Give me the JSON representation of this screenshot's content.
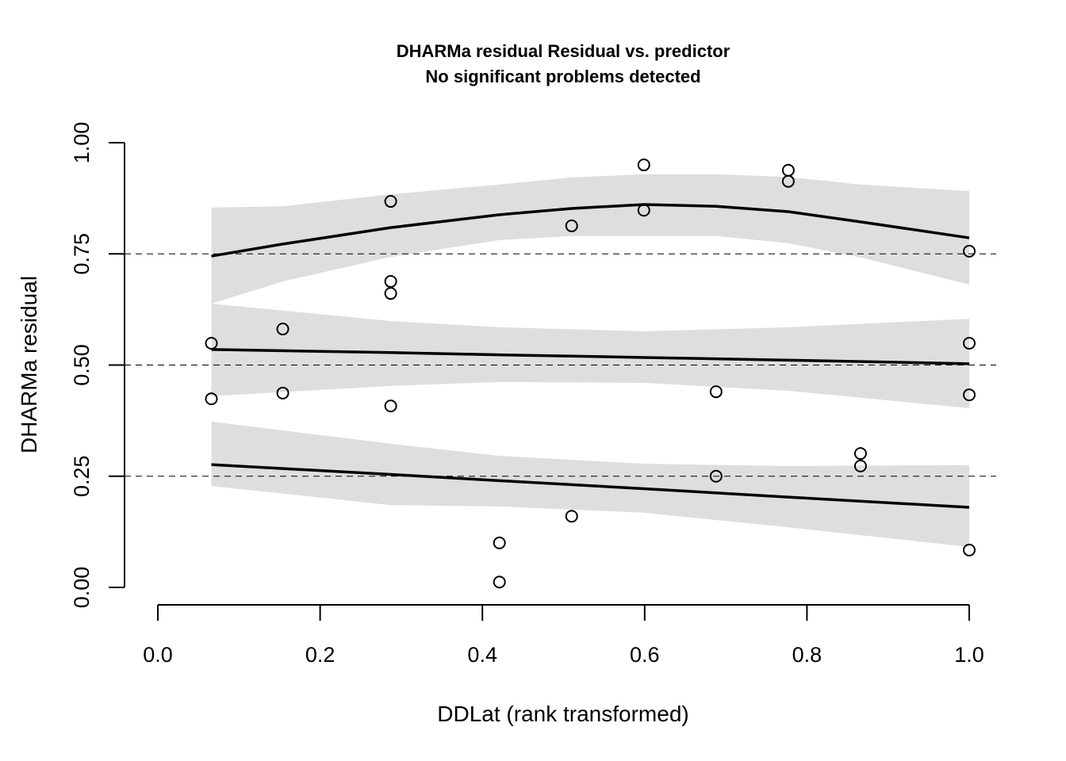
{
  "chart_data": {
    "type": "scatter",
    "title": "DHARMa residual Residual vs. predictor",
    "subtitle": "No significant problems detected",
    "xlabel": "DDLat (rank transformed)",
    "ylabel": "DHARMa residual",
    "xlim": [
      0,
      1
    ],
    "ylim": [
      0,
      1
    ],
    "xticks": [
      "0.0",
      "0.2",
      "0.4",
      "0.6",
      "0.8",
      "1.0"
    ],
    "xtick_values": [
      0,
      0.2,
      0.4,
      0.6,
      0.8,
      1.0
    ],
    "yticks": [
      "0.00",
      "0.25",
      "0.50",
      "0.75",
      "1.00"
    ],
    "ytick_values": [
      0,
      0.25,
      0.5,
      0.75,
      1.0
    ],
    "reference_lines": [
      0.25,
      0.5,
      0.75
    ],
    "points": [
      [
        0.066,
        0.549
      ],
      [
        0.066,
        0.424
      ],
      [
        0.154,
        0.581
      ],
      [
        0.154,
        0.437
      ],
      [
        0.287,
        0.868
      ],
      [
        0.287,
        0.688
      ],
      [
        0.287,
        0.661
      ],
      [
        0.287,
        0.408
      ],
      [
        0.421,
        0.1
      ],
      [
        0.421,
        0.012
      ],
      [
        0.51,
        0.813
      ],
      [
        0.51,
        0.16
      ],
      [
        0.599,
        0.95
      ],
      [
        0.599,
        0.848
      ],
      [
        0.688,
        0.44
      ],
      [
        0.688,
        0.25
      ],
      [
        0.777,
        0.938
      ],
      [
        0.777,
        0.913
      ],
      [
        0.866,
        0.301
      ],
      [
        0.866,
        0.273
      ],
      [
        1.0,
        0.756
      ],
      [
        1.0,
        0.549
      ],
      [
        1.0,
        0.433
      ],
      [
        1.0,
        0.084
      ]
    ],
    "quantile_fits": [
      {
        "name": "q0.75",
        "x": [
          0.066,
          0.154,
          0.287,
          0.421,
          0.51,
          0.599,
          0.688,
          0.777,
          0.866,
          1.0
        ],
        "y": [
          0.745,
          0.772,
          0.809,
          0.838,
          0.852,
          0.861,
          0.857,
          0.845,
          0.822,
          0.786
        ],
        "upper": [
          0.854,
          0.857,
          0.884,
          0.906,
          0.922,
          0.929,
          0.929,
          0.923,
          0.906,
          0.891
        ],
        "lower": [
          0.638,
          0.688,
          0.743,
          0.781,
          0.79,
          0.79,
          0.79,
          0.774,
          0.742,
          0.681
        ]
      },
      {
        "name": "q0.5",
        "x": [
          0.066,
          0.287,
          0.421,
          0.599,
          0.777,
          1.0
        ],
        "y": [
          0.535,
          0.528,
          0.523,
          0.517,
          0.511,
          0.503
        ],
        "upper": [
          0.638,
          0.599,
          0.585,
          0.576,
          0.585,
          0.604
        ],
        "lower": [
          0.43,
          0.453,
          0.462,
          0.46,
          0.442,
          0.403
        ]
      },
      {
        "name": "q0.25",
        "x": [
          0.066,
          0.287,
          0.421,
          0.599,
          0.777,
          1.0
        ],
        "y": [
          0.276,
          0.254,
          0.24,
          0.222,
          0.203,
          0.18
        ],
        "upper": [
          0.373,
          0.323,
          0.296,
          0.278,
          0.273,
          0.275
        ],
        "lower": [
          0.228,
          0.185,
          0.182,
          0.168,
          0.135,
          0.091
        ]
      }
    ],
    "colors": {
      "band": "#dedede",
      "line": "#000000"
    }
  }
}
